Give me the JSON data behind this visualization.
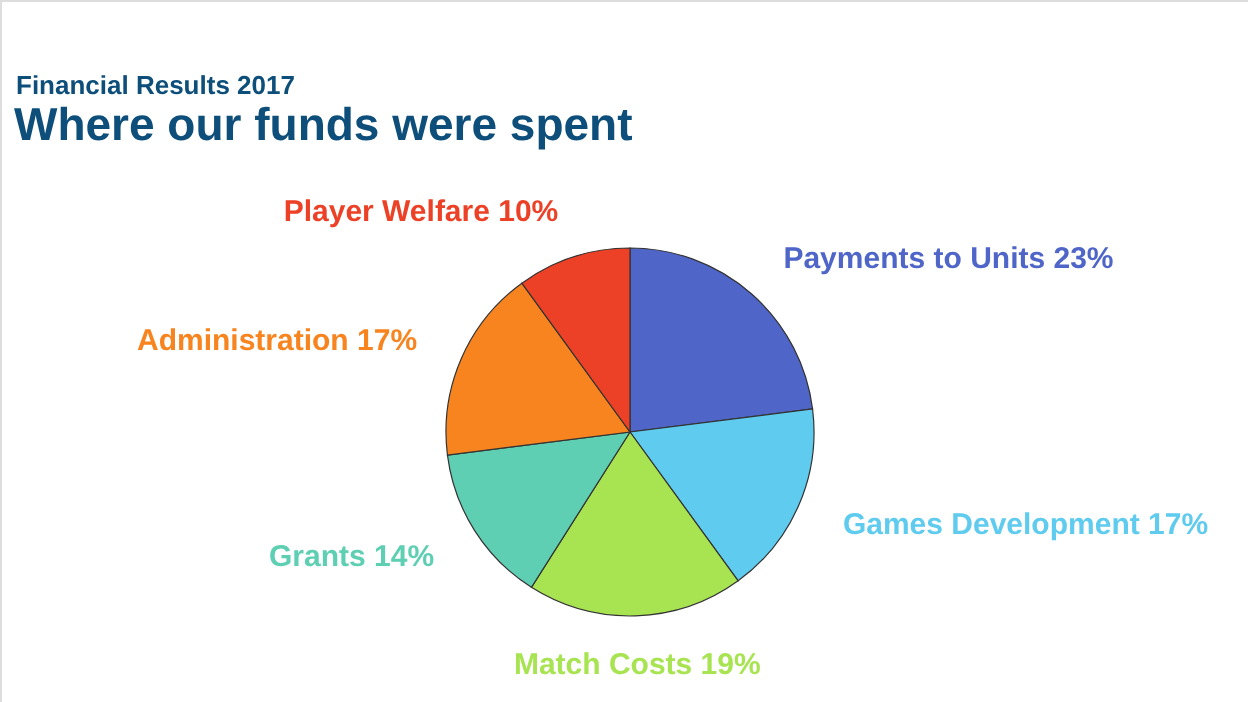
{
  "chart_data": {
    "type": "pie",
    "title": "Where our funds were spent",
    "subtitle": "Financial Results 2017",
    "categories": [
      "Payments to Units",
      "Games Development",
      "Match Costs",
      "Grants",
      "Administration",
      "Player Welfare"
    ],
    "values": [
      23,
      17,
      19,
      14,
      17,
      10
    ],
    "value_labels": [
      "23%",
      "17%",
      "19%",
      "14%",
      "17%",
      "10%"
    ],
    "colors": [
      "#4f66c8",
      "#5ecbef",
      "#a8e452",
      "#5ecfb2",
      "#f7841f",
      "#ec4126"
    ]
  }
}
